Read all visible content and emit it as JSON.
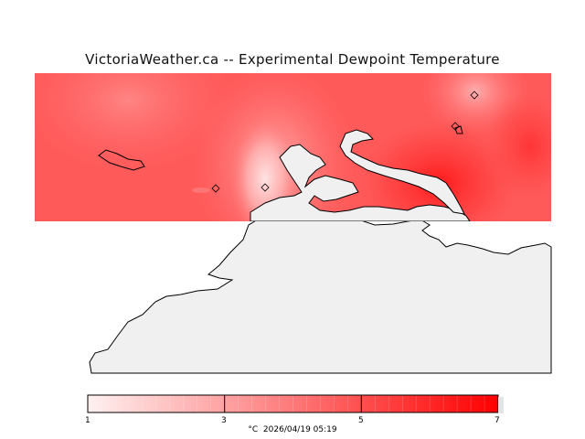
{
  "title": "VictoriaWeather.ca -- Experimental Dewpoint Temperature",
  "colorbar": {
    "ticks": [
      "1",
      "3",
      "5",
      "7"
    ],
    "min": 1,
    "max": 7,
    "color_low": "#fff0f0",
    "color_high": "#ff0000"
  },
  "footer": {
    "unit": "°C",
    "timestamp": "2026/04/19 05:19"
  },
  "colors": {
    "land": "#f0f0f0",
    "coastline": "#000000",
    "field_base": "#ff5a5a"
  }
}
